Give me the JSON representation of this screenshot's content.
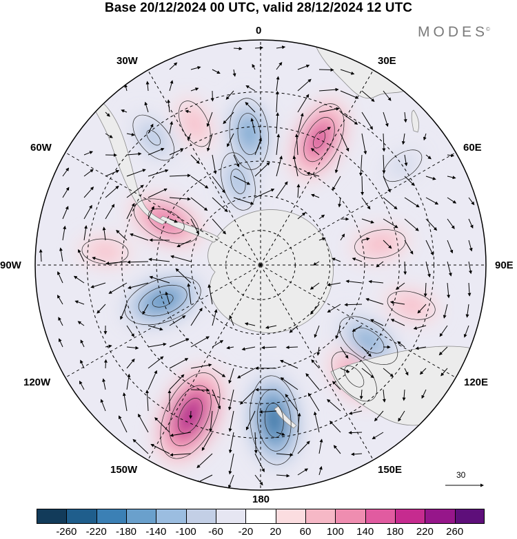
{
  "title": "Base 20/12/2024 00 UTC, valid 28/12/2024 12 UTC",
  "brand": {
    "name": "MODES",
    "mark": "©"
  },
  "map": {
    "projection": "south-polar-stereographic",
    "longitude_labels": {
      "top": "0",
      "top_right": "30E",
      "right_upper": "60E",
      "right": "90E",
      "right_lower": "120E",
      "bottom_right": "150E",
      "bottom": "180",
      "bottom_left": "150W",
      "left_lower": "120W",
      "left": "90W",
      "left_upper": "60W",
      "top_left": "30W"
    },
    "reference_vector": {
      "value": "30"
    },
    "anomaly_centers": [
      {
        "lon": -155,
        "lat": -42,
        "value": 250
      },
      {
        "lon": 175,
        "lat": -45,
        "value": -240
      },
      {
        "lon": 140,
        "lat": -48,
        "value": 120
      },
      {
        "lon": 125,
        "lat": -52,
        "value": -150
      },
      {
        "lon": 80,
        "lat": -55,
        "value": 90
      },
      {
        "lon": 25,
        "lat": -50,
        "value": 190
      },
      {
        "lon": -5,
        "lat": -52,
        "value": -170
      },
      {
        "lon": -40,
        "lat": -42,
        "value": -100
      },
      {
        "lon": -25,
        "lat": -45,
        "value": 80
      },
      {
        "lon": -65,
        "lat": -60,
        "value": 160
      },
      {
        "lon": -110,
        "lat": -60,
        "value": -200
      },
      {
        "lon": -15,
        "lat": -65,
        "value": -120
      },
      {
        "lon": -85,
        "lat": -45,
        "value": 70
      },
      {
        "lon": 55,
        "lat": -40,
        "value": -60
      },
      {
        "lon": 105,
        "lat": -45,
        "value": 80
      }
    ]
  },
  "colorbar": {
    "colors": [
      "#123b5a",
      "#1f5e8c",
      "#3b80b5",
      "#6aa0cc",
      "#9bbde0",
      "#c3cfe6",
      "#e6e6f2",
      "#ffffff",
      "#fbdde0",
      "#f6b8c6",
      "#ef8db0",
      "#e15ba0",
      "#c62b8f",
      "#96168a",
      "#5e0f7a"
    ],
    "tick_labels": [
      "-260",
      "-220",
      "-180",
      "-140",
      "-100",
      "-60",
      "-20",
      "20",
      "60",
      "100",
      "140",
      "180",
      "220",
      "260"
    ]
  }
}
